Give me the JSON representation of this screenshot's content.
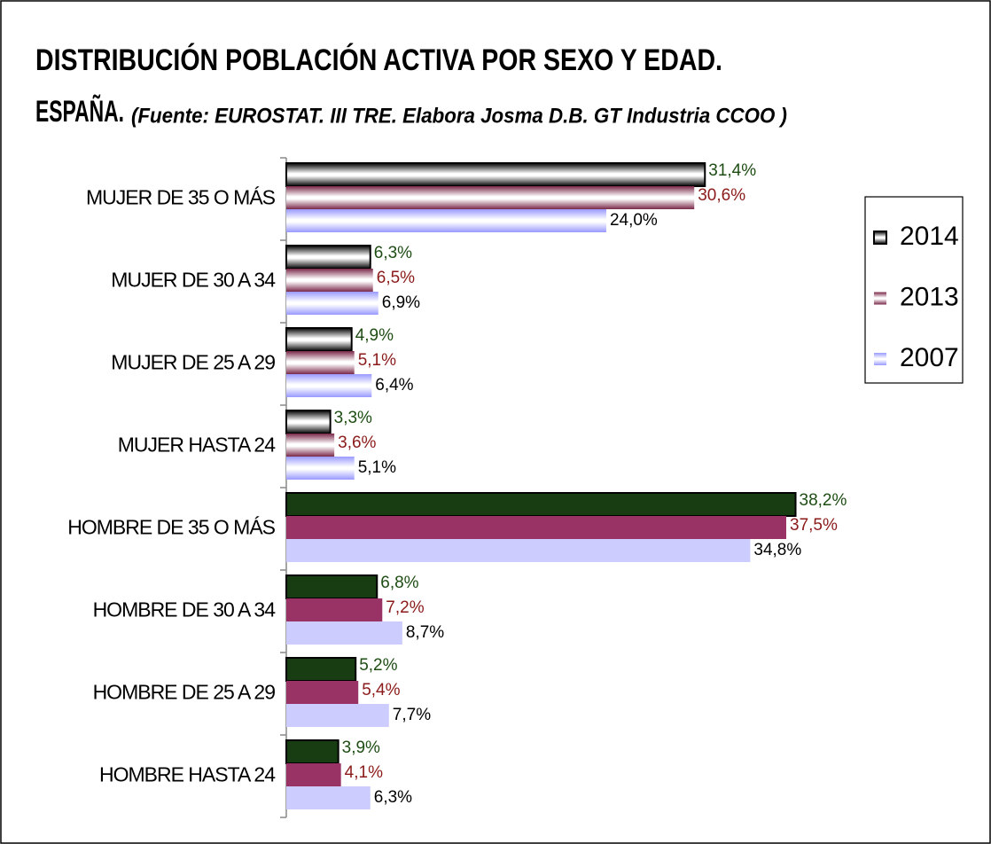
{
  "chart_data": {
    "type": "hbar",
    "title": [
      "DISTRIBUCIÓN POBLACIÓN ACTIVA POR SEXO Y EDAD.",
      "ESPAÑA."
    ],
    "subtitle": "(Fuente: EUROSTAT. III TRE. Elabora Josma D.B. GT Industria CCOO )",
    "categories": [
      "MUJER DE 35 O MÁS",
      "MUJER DE 30 A 34",
      "MUJER DE 25 A 29",
      "MUJER HASTA 24",
      "HOMBRE DE 35 O MÁS",
      "HOMBRE DE 30 A 34",
      "HOMBRE DE 25 A 29",
      "HOMBRE HASTA 24"
    ],
    "series": [
      {
        "name": "2014",
        "color": "#183d12",
        "gradient_color": "#000000",
        "label_color": "#1e4d14",
        "values": [
          31.4,
          6.3,
          4.9,
          3.3,
          38.2,
          6.8,
          5.2,
          3.9
        ],
        "value_labels": [
          "31,4%",
          "6,3%",
          "4,9%",
          "3,3%",
          "38,2%",
          "6,8%",
          "5,2%",
          "3,9%"
        ]
      },
      {
        "name": "2013",
        "color": "#993366",
        "gradient_color": "#7a2848",
        "label_color": "#8b1a1a",
        "values": [
          30.6,
          6.5,
          5.1,
          3.6,
          37.5,
          7.2,
          5.4,
          4.1
        ],
        "value_labels": [
          "30,6%",
          "6,5%",
          "5,1%",
          "3,6%",
          "37,5%",
          "7,2%",
          "5,4%",
          "4,1%"
        ]
      },
      {
        "name": "2007",
        "color": "#ccccff",
        "gradient_color": "#9999ff",
        "label_color": "#000000",
        "values": [
          24.0,
          6.9,
          6.4,
          5.1,
          34.8,
          8.7,
          7.7,
          6.3
        ],
        "value_labels": [
          "24,0%",
          "6,9%",
          "6,4%",
          "5,1%",
          "34,8%",
          "8,7%",
          "7,7%",
          "6,3%"
        ]
      }
    ],
    "xlim": [
      0,
      50
    ],
    "legend": "right"
  }
}
